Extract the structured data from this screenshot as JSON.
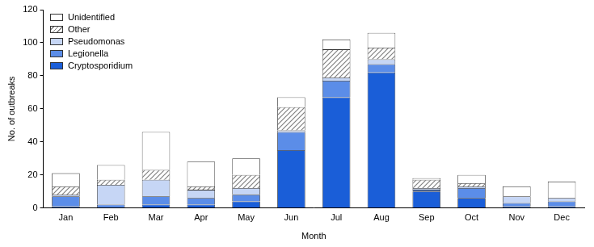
{
  "chart_data": {
    "type": "bar",
    "stacked": true,
    "xlabel": "Month",
    "ylabel": "No. of outbreaks",
    "categories": [
      "Jan",
      "Feb",
      "Mar",
      "Apr",
      "May",
      "Jun",
      "Jul",
      "Aug",
      "Sep",
      "Oct",
      "Nov",
      "Dec"
    ],
    "series": [
      {
        "name": "Cryptosporidium",
        "color": "#1a5ed8",
        "values": [
          1,
          0,
          2,
          2,
          4,
          35,
          67,
          82,
          10,
          6,
          1,
          1
        ]
      },
      {
        "name": "Legionella",
        "color": "#5b8de8",
        "values": [
          6,
          2,
          5,
          4,
          4,
          11,
          10,
          5,
          1,
          6,
          2,
          3
        ]
      },
      {
        "name": "Pseudomonas",
        "color": "#c6d6f5",
        "values": [
          1,
          12,
          10,
          5,
          4,
          1,
          2,
          3,
          1,
          1,
          4,
          2
        ]
      },
      {
        "name": "Other",
        "color": "#808080",
        "values": [
          5,
          3,
          6,
          2,
          8,
          14,
          17,
          7,
          5,
          2,
          0,
          0
        ]
      },
      {
        "name": "Unidentified",
        "color": "#ffffff",
        "values": [
          8,
          9,
          23,
          15,
          10,
          6,
          6,
          9,
          1,
          5,
          6,
          10
        ]
      }
    ],
    "ylim": [
      0,
      120
    ],
    "yticks": [
      0,
      20,
      40,
      60,
      80,
      100,
      120
    ],
    "grid": false,
    "legend": "top-left"
  }
}
